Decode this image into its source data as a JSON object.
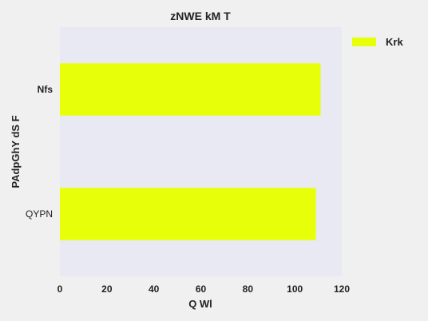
{
  "chart_data": {
    "type": "bar",
    "orientation": "horizontal",
    "title": "zNWE kM T",
    "xlabel": "Q Wl",
    "ylabel": "PAdpGhY dS F",
    "categories": [
      "QYPN",
      "Nfs"
    ],
    "series": [
      {
        "name": "Krk",
        "values": [
          109,
          111
        ]
      }
    ],
    "xlim": [
      0,
      120
    ],
    "xticks": [
      "0",
      "20",
      "40",
      "60",
      "80",
      "100",
      "120"
    ],
    "grid": false,
    "legend_position": "top-right",
    "colors": {
      "bar": "#e8ff0a",
      "plot_background": "#e8e9f2",
      "figure_background": "#f0f0f0"
    }
  }
}
